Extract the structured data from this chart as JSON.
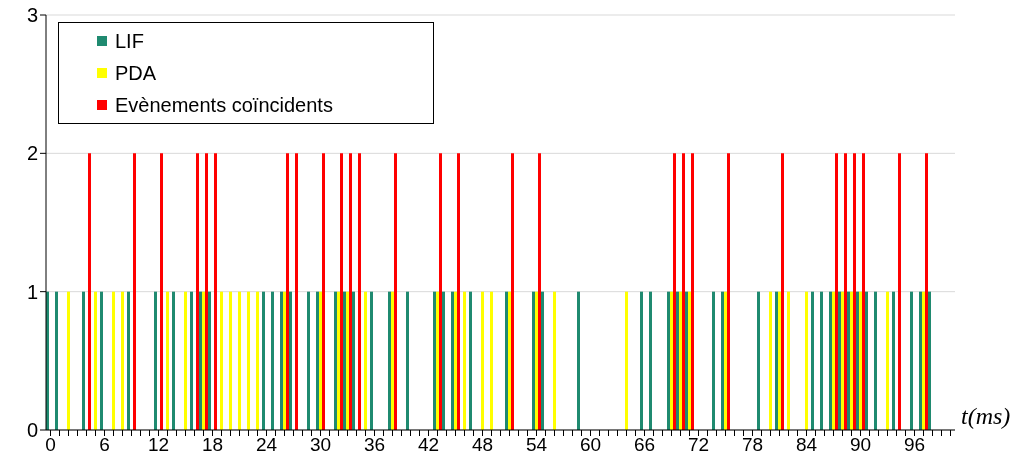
{
  "chart_data": {
    "type": "bar",
    "xlabel": "t(ms)",
    "categories": [
      "0",
      null,
      null,
      null,
      null,
      null,
      "6",
      null,
      null,
      null,
      null,
      null,
      "12",
      null,
      null,
      null,
      null,
      null,
      "18",
      null,
      null,
      null,
      null,
      null,
      "24",
      null,
      null,
      null,
      null,
      null,
      "30",
      null,
      null,
      null,
      null,
      null,
      "36",
      null,
      null,
      null,
      null,
      null,
      "42",
      null,
      null,
      null,
      null,
      null,
      "48",
      null,
      null,
      null,
      null,
      null,
      "54",
      null,
      null,
      null,
      null,
      null,
      "60",
      null,
      null,
      null,
      null,
      null,
      "66",
      null,
      null,
      null,
      null,
      null,
      "72",
      null,
      null,
      null,
      null,
      null,
      "78",
      null,
      null,
      null,
      null,
      null,
      "84",
      null,
      null,
      null,
      null,
      null,
      "90",
      null,
      null,
      null,
      null,
      null,
      "96",
      null,
      null,
      null,
      null
    ],
    "series": [
      {
        "name": "LIF",
        "color": "#1f8a70",
        "values": [
          1,
          1,
          0,
          0,
          1,
          0,
          1,
          0,
          0,
          1,
          0,
          0,
          1,
          0,
          1,
          0,
          1,
          1,
          1,
          0,
          0,
          0,
          0,
          0,
          1,
          1,
          1,
          1,
          0,
          1,
          1,
          0,
          1,
          1,
          1,
          0,
          1,
          0,
          1,
          0,
          1,
          0,
          0,
          1,
          1,
          1,
          0,
          1,
          0,
          0,
          0,
          1,
          0,
          0,
          1,
          1,
          0,
          0,
          0,
          1,
          0,
          0,
          0,
          0,
          0,
          0,
          1,
          1,
          0,
          1,
          1,
          1,
          0,
          0,
          1,
          1,
          0,
          0,
          0,
          1,
          0,
          1,
          0,
          0,
          0,
          1,
          1,
          1,
          1,
          1,
          1,
          1,
          1,
          0,
          1,
          0,
          1,
          1,
          1,
          0,
          0
        ]
      },
      {
        "name": "PDA",
        "color": "#ffff00",
        "values": [
          0,
          0,
          1,
          0,
          0,
          1,
          0,
          1,
          1,
          0,
          0,
          0,
          0,
          1,
          0,
          1,
          0,
          1,
          0,
          1,
          1,
          1,
          1,
          1,
          0,
          0,
          1,
          0,
          0,
          0,
          1,
          0,
          1,
          1,
          0,
          1,
          0,
          0,
          1,
          0,
          0,
          0,
          0,
          1,
          0,
          1,
          1,
          0,
          1,
          1,
          0,
          1,
          0,
          0,
          1,
          0,
          1,
          0,
          0,
          0,
          0,
          0,
          0,
          0,
          1,
          0,
          0,
          0,
          0,
          1,
          1,
          1,
          0,
          0,
          0,
          1,
          0,
          0,
          0,
          0,
          1,
          1,
          1,
          0,
          1,
          0,
          0,
          1,
          1,
          1,
          1,
          0,
          0,
          1,
          0,
          0,
          0,
          1,
          0,
          0,
          0
        ]
      },
      {
        "name": "Evènements coïncidents",
        "color": "#ff0000",
        "values": [
          0,
          0,
          0,
          0,
          2,
          0,
          0,
          0,
          0,
          2,
          0,
          0,
          2,
          0,
          0,
          0,
          2,
          2,
          2,
          0,
          0,
          0,
          0,
          0,
          0,
          0,
          2,
          2,
          0,
          0,
          2,
          0,
          2,
          2,
          2,
          0,
          0,
          0,
          2,
          0,
          0,
          0,
          0,
          2,
          0,
          2,
          0,
          0,
          0,
          0,
          0,
          2,
          0,
          0,
          2,
          0,
          0,
          0,
          0,
          0,
          0,
          0,
          0,
          0,
          0,
          0,
          0,
          0,
          0,
          2,
          2,
          2,
          0,
          0,
          0,
          2,
          0,
          0,
          0,
          0,
          0,
          2,
          0,
          0,
          0,
          0,
          0,
          2,
          2,
          2,
          2,
          0,
          0,
          0,
          2,
          0,
          0,
          2,
          0,
          0,
          0
        ]
      }
    ],
    "ylim": [
      0,
      3
    ],
    "yticks": [
      0,
      1,
      2,
      3
    ],
    "grid": "y",
    "legend": "top left"
  }
}
